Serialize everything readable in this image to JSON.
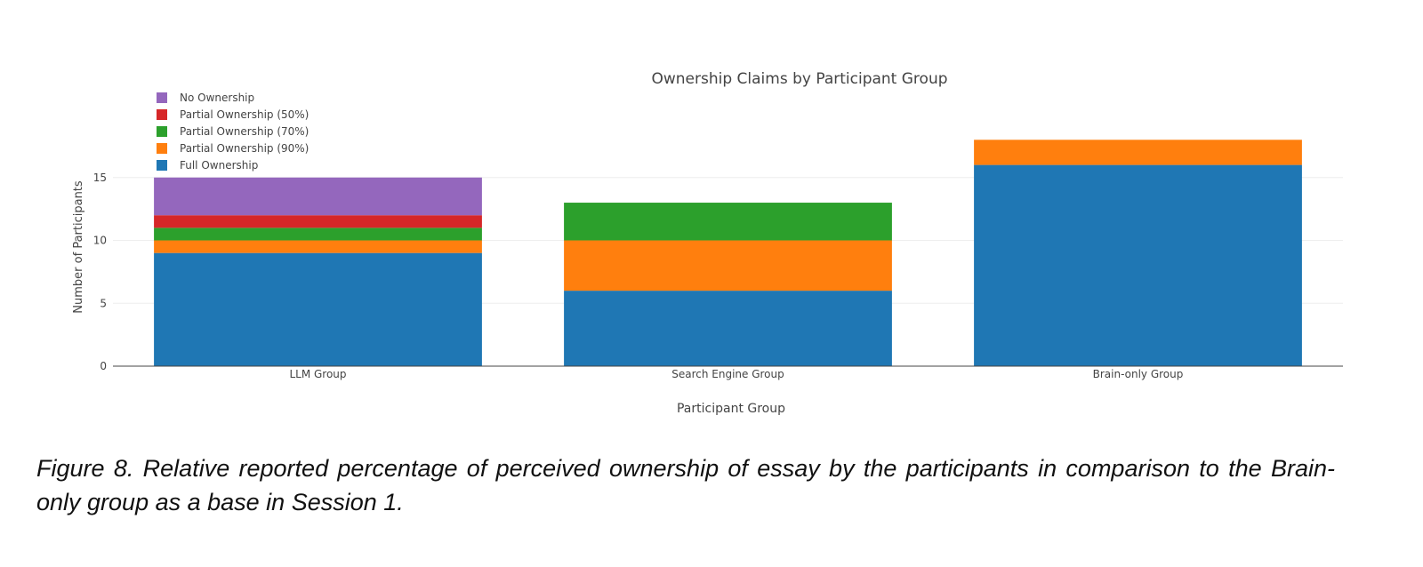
{
  "chart_data": {
    "type": "bar",
    "stacked": true,
    "title": "Ownership Claims by Participant Group",
    "xlabel": "Participant Group",
    "ylabel": "Number of Participants",
    "categories": [
      "LLM Group",
      "Search Engine Group",
      "Brain-only Group"
    ],
    "ylim": [
      0,
      18
    ],
    "yticks": [
      0,
      5,
      10,
      15
    ],
    "grid": true,
    "legend_position": "top-left",
    "series": [
      {
        "name": "Full Ownership",
        "color": "#1f77b4",
        "values": [
          9,
          6,
          16
        ]
      },
      {
        "name": "Partial Ownership (90%)",
        "color": "#ff7f0e",
        "values": [
          1,
          4,
          2
        ]
      },
      {
        "name": "Partial Ownership (70%)",
        "color": "#2ca02c",
        "values": [
          1,
          3,
          0
        ]
      },
      {
        "name": "Partial Ownership (50%)",
        "color": "#d62728",
        "values": [
          1,
          0,
          0
        ]
      },
      {
        "name": "No Ownership",
        "color": "#9467bd",
        "values": [
          3,
          0,
          0
        ]
      }
    ]
  },
  "caption": "Figure 8. Relative reported percentage of perceived ownership of essay by the participants in comparison to the Brain-only group as a base in Session 1."
}
